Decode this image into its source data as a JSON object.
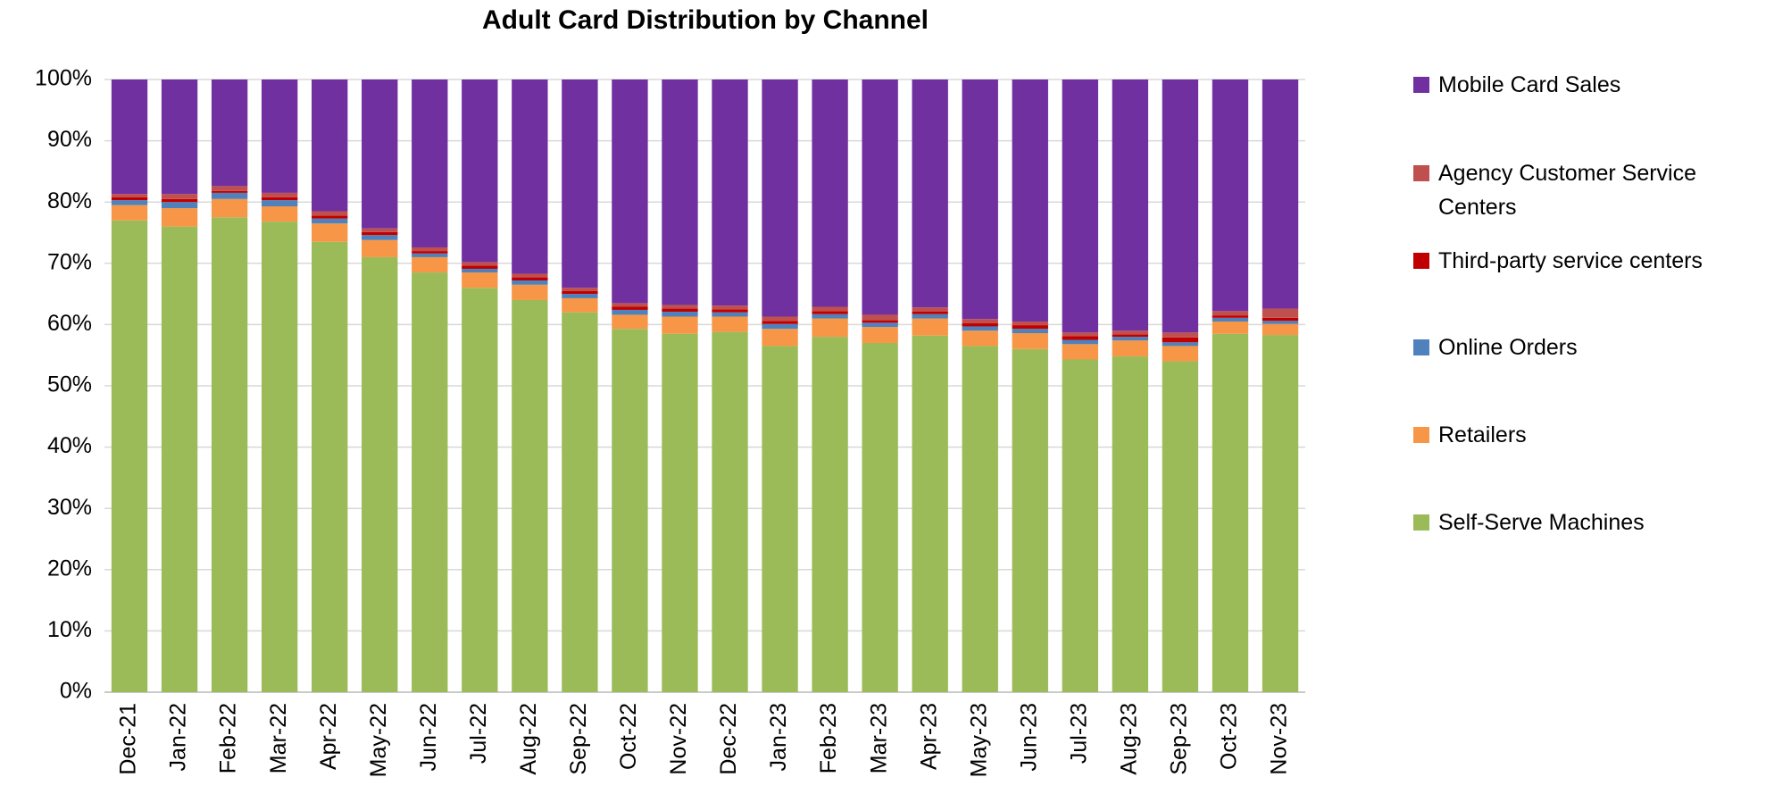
{
  "chart_data": {
    "type": "stacked_bar",
    "title": "Adult Card Distribution by Channel",
    "categories": [
      "Dec-21",
      "Jan-22",
      "Feb-22",
      "Mar-22",
      "Apr-22",
      "May-22",
      "Jun-22",
      "Jul-22",
      "Aug-22",
      "Sep-22",
      "Oct-22",
      "Nov-22",
      "Dec-22",
      "Jan-23",
      "Feb-23",
      "Mar-23",
      "Apr-23",
      "May-23",
      "Jun-23",
      "Jul-23",
      "Aug-23",
      "Sep-23",
      "Oct-23",
      "Nov-23"
    ],
    "series": [
      {
        "name": "Self-Serve Machines",
        "color": "#9bbb59",
        "values": [
          77,
          76,
          77.5,
          76.8,
          73.5,
          71,
          68.5,
          66,
          64,
          62,
          59.3,
          58.5,
          58.8,
          56.5,
          58,
          57,
          58.2,
          56.5,
          56,
          54.3,
          54.8,
          54,
          58.5,
          58.3
        ]
      },
      {
        "name": "Retailers",
        "color": "#f79646",
        "values": [
          2.5,
          3,
          3,
          2.5,
          3,
          2.8,
          2.5,
          2.5,
          2.5,
          2.3,
          2.3,
          2.8,
          2.5,
          2.8,
          3,
          2.6,
          2.8,
          2.5,
          2.6,
          2.5,
          2.6,
          2.5,
          2,
          1.8
        ]
      },
      {
        "name": "Online Orders",
        "color": "#4f81bd",
        "values": [
          0.8,
          1,
          1,
          1,
          0.8,
          0.8,
          0.6,
          0.6,
          0.7,
          0.7,
          0.8,
          0.8,
          0.7,
          0.8,
          0.7,
          0.7,
          0.7,
          0.7,
          0.7,
          0.7,
          0.6,
          0.6,
          0.6,
          0.5
        ]
      },
      {
        "name": "Third-party service centers",
        "color": "#c00000",
        "values": [
          0.5,
          0.5,
          0.3,
          0.5,
          0.5,
          0.5,
          0.4,
          0.5,
          0.5,
          0.5,
          0.5,
          0.5,
          0.5,
          0.5,
          0.5,
          0.4,
          0.4,
          0.5,
          0.6,
          0.6,
          0.4,
          0.8,
          0.4,
          0.5
        ]
      },
      {
        "name": "Agency Customer Service Centers",
        "color": "#c0504d",
        "values": [
          0.5,
          0.8,
          0.8,
          0.7,
          0.7,
          0.6,
          0.6,
          0.6,
          0.6,
          0.5,
          0.6,
          0.6,
          0.6,
          0.7,
          0.7,
          0.9,
          0.7,
          0.7,
          0.6,
          0.6,
          0.6,
          0.8,
          0.7,
          1.5
        ]
      },
      {
        "name": "Mobile Card Sales",
        "color": "#7030a0",
        "values": [
          18.7,
          18.7,
          17.4,
          18.5,
          21.5,
          24.3,
          27.4,
          29.8,
          31.7,
          34,
          36.5,
          36.8,
          36.9,
          38.7,
          37.1,
          38.4,
          37.2,
          39.1,
          39.5,
          41.3,
          41,
          41.3,
          37.8,
          37.4
        ]
      }
    ],
    "ylim": [
      0,
      100
    ],
    "yticks": [
      {
        "value": 0,
        "label": "0%"
      },
      {
        "value": 10,
        "label": "10%"
      },
      {
        "value": 20,
        "label": "20%"
      },
      {
        "value": 30,
        "label": "30%"
      },
      {
        "value": 40,
        "label": "40%"
      },
      {
        "value": 50,
        "label": "50%"
      },
      {
        "value": 60,
        "label": "60%"
      },
      {
        "value": 70,
        "label": "70%"
      },
      {
        "value": 80,
        "label": "80%"
      },
      {
        "value": 90,
        "label": "90%"
      },
      {
        "value": 100,
        "label": "100%"
      }
    ],
    "grid": true,
    "legend": "right"
  }
}
